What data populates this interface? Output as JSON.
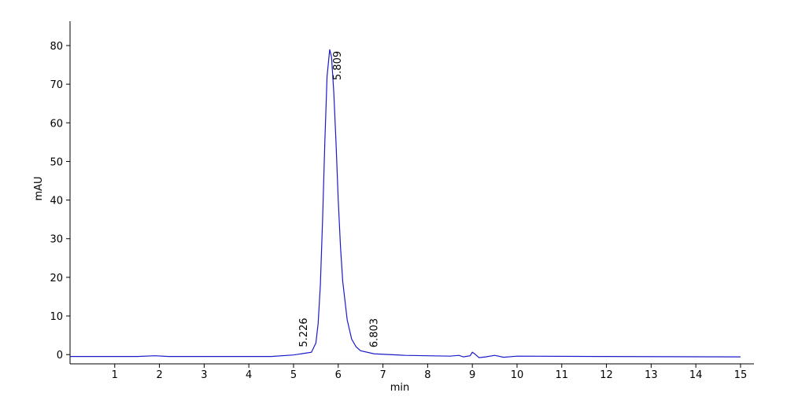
{
  "chart_data": {
    "type": "line",
    "x_label": "min",
    "y_label": "mAU",
    "xlim": [
      0,
      15.3
    ],
    "ylim": [
      -2.4,
      86.3
    ],
    "xticks": [
      1,
      2,
      3,
      4,
      5,
      6,
      7,
      8,
      9,
      10,
      11,
      12,
      13,
      14,
      15
    ],
    "yticks": [
      0,
      10,
      20,
      30,
      40,
      50,
      60,
      70,
      80
    ],
    "color": "#1a1acc",
    "peaks": [
      5.226,
      5.809,
      6.803
    ],
    "x": [
      0,
      1.5,
      1.9,
      2.2,
      4.5,
      5.0,
      5.226,
      5.4,
      5.5,
      5.55,
      5.6,
      5.65,
      5.7,
      5.75,
      5.809,
      5.85,
      5.9,
      5.95,
      6.0,
      6.05,
      6.1,
      6.2,
      6.3,
      6.4,
      6.5,
      6.803,
      7.5,
      8.5,
      8.7,
      8.8,
      8.95,
      9.0,
      9.05,
      9.15,
      9.3,
      9.5,
      9.7,
      10.0,
      12,
      15
    ],
    "values": [
      -0.5,
      -0.5,
      -0.3,
      -0.5,
      -0.5,
      -0.1,
      0.3,
      0.6,
      3,
      8,
      18,
      35,
      55,
      72,
      79,
      77,
      68,
      55,
      40,
      28,
      19,
      9,
      4,
      2,
      1,
      0.2,
      -0.2,
      -0.4,
      -0.2,
      -0.6,
      -0.3,
      0.6,
      0.2,
      -0.8,
      -0.6,
      -0.2,
      -0.7,
      -0.4,
      -0.5,
      -0.6
    ]
  }
}
